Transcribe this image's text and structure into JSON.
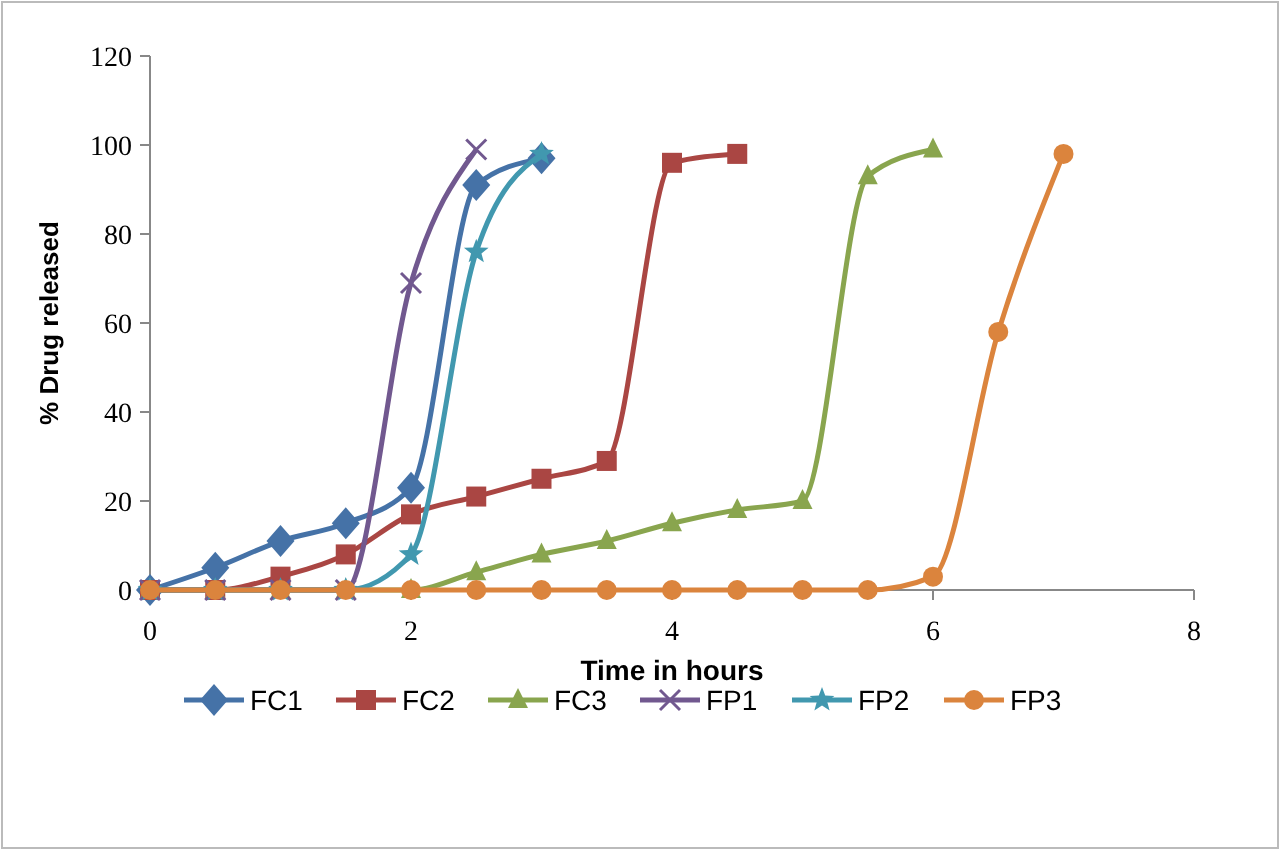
{
  "chart_data": {
    "type": "line",
    "xlabel": "Time in hours",
    "ylabel": "% Drug released",
    "xlim": [
      0,
      8
    ],
    "xticks": [
      0,
      2,
      4,
      6,
      8
    ],
    "ylim": [
      0,
      120
    ],
    "yticks": [
      0,
      20,
      40,
      60,
      80,
      100,
      120
    ],
    "grid": false,
    "legend": "bottom",
    "series": [
      {
        "name": "FC1",
        "color": "#4572a7",
        "marker": "diamond",
        "x": [
          0,
          0.5,
          1,
          1.5,
          2,
          2.5,
          3
        ],
        "values": [
          0,
          5,
          11,
          15,
          23,
          91,
          97
        ]
      },
      {
        "name": "FC2",
        "color": "#aa4643",
        "marker": "square",
        "x": [
          0,
          0.5,
          1,
          1.5,
          2,
          2.5,
          3,
          3.5,
          4,
          4.5
        ],
        "values": [
          0,
          0,
          3,
          8,
          17,
          21,
          25,
          29,
          96,
          98
        ]
      },
      {
        "name": "FC3",
        "color": "#89a54e",
        "marker": "triangle",
        "x": [
          0,
          0.5,
          1,
          1.5,
          2,
          2.5,
          3,
          3.5,
          4,
          4.5,
          5,
          5.5,
          6
        ],
        "values": [
          0,
          0,
          0,
          0,
          0,
          4,
          8,
          11,
          15,
          18,
          20,
          93,
          99
        ]
      },
      {
        "name": "FP1",
        "color": "#71588f",
        "marker": "cross",
        "x": [
          0,
          0.5,
          1,
          1.5,
          2,
          2.5
        ],
        "values": [
          0,
          0,
          0,
          0,
          69,
          99
        ]
      },
      {
        "name": "FP2",
        "color": "#4198af",
        "marker": "star",
        "x": [
          0,
          0.5,
          1,
          1.5,
          2,
          2.5,
          3
        ],
        "values": [
          0,
          0,
          0,
          0,
          8,
          76,
          98
        ]
      },
      {
        "name": "FP3",
        "color": "#db843d",
        "marker": "circle",
        "x": [
          0,
          0.5,
          1,
          1.5,
          2,
          2.5,
          3,
          3.5,
          4,
          4.5,
          5,
          5.5,
          6,
          6.5,
          7
        ],
        "values": [
          0,
          0,
          0,
          0,
          0,
          0,
          0,
          0,
          0,
          0,
          0,
          0,
          3,
          58,
          98
        ]
      }
    ]
  }
}
